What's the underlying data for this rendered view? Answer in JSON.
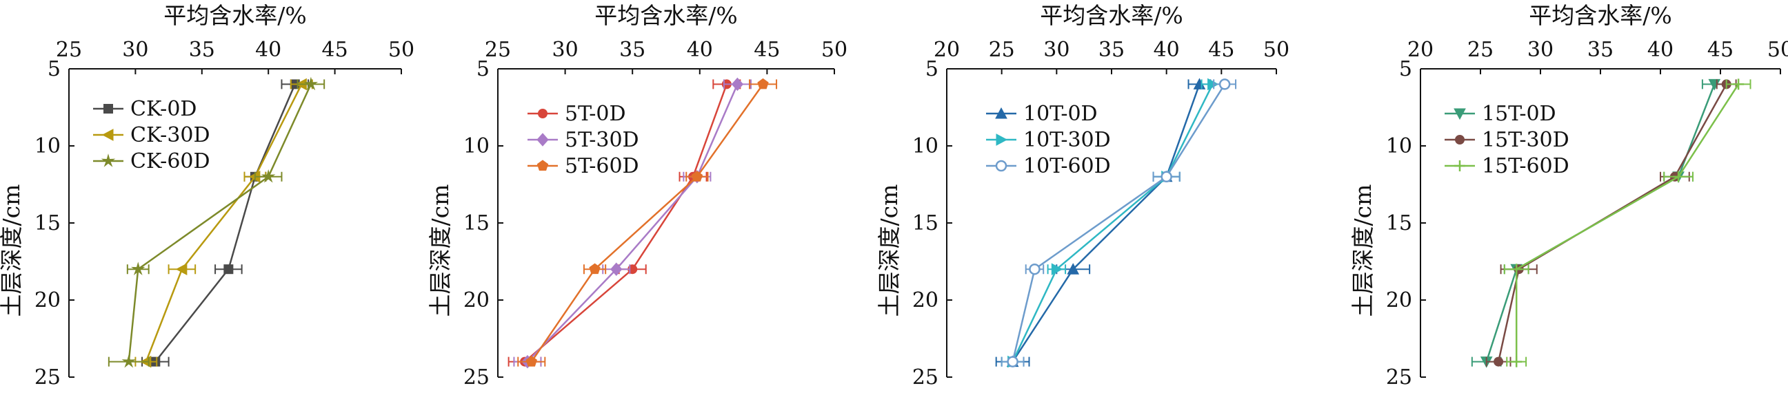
{
  "chart_data": [
    {
      "type": "line",
      "orientation": "depth-profile",
      "xlabel": "平均含水率/%",
      "ylabel": "土层深度/cm",
      "xlim": [
        25,
        50
      ],
      "ylim": [
        5,
        25
      ],
      "x_ticks": [
        "25",
        "30",
        "35",
        "40",
        "45",
        "50"
      ],
      "y_ticks": [
        "5",
        "10",
        "15",
        "20",
        "25"
      ],
      "x_axis_position": "top",
      "y_inverted": true,
      "grid": false,
      "legend_position": "upper-left",
      "depths": [
        6,
        12,
        18,
        24
      ],
      "series": [
        {
          "name": "CK-0D",
          "color": "#4a4a4a",
          "marker": "square",
          "moisture": [
            42.0,
            39.0,
            37.0,
            31.5
          ],
          "error": [
            1.0,
            0.8,
            1.0,
            1.0
          ]
        },
        {
          "name": "CK-30D",
          "color": "#b89a10",
          "marker": "triangle-left",
          "moisture": [
            42.5,
            39.0,
            33.5,
            30.8
          ],
          "error": [
            0.8,
            0.8,
            1.0,
            0.8
          ]
        },
        {
          "name": "CK-60D",
          "color": "#7d8a2a",
          "marker": "star",
          "moisture": [
            43.2,
            40.0,
            30.2,
            29.5
          ],
          "error": [
            1.0,
            1.0,
            0.8,
            1.5
          ]
        }
      ]
    },
    {
      "type": "line",
      "orientation": "depth-profile",
      "xlabel": "平均含水率/%",
      "ylabel": "土层深度/cm",
      "xlim": [
        25,
        50
      ],
      "ylim": [
        5,
        25
      ],
      "x_ticks": [
        "25",
        "30",
        "35",
        "40",
        "45",
        "50"
      ],
      "y_ticks": [
        "5",
        "10",
        "15",
        "20",
        "25"
      ],
      "x_axis_position": "top",
      "y_inverted": true,
      "grid": false,
      "legend_position": "upper-left",
      "depths": [
        6,
        12,
        18,
        24
      ],
      "series": [
        {
          "name": "5T-0D",
          "color": "#d8453a",
          "marker": "circle",
          "moisture": [
            42.0,
            39.5,
            35.0,
            27.0
          ],
          "error": [
            1.0,
            1.0,
            1.0,
            1.2
          ]
        },
        {
          "name": "5T-30D",
          "color": "#a97bc7",
          "marker": "diamond",
          "moisture": [
            42.8,
            39.8,
            33.8,
            27.2
          ],
          "error": [
            1.0,
            1.0,
            1.0,
            1.0
          ]
        },
        {
          "name": "5T-60D",
          "color": "#e2712a",
          "marker": "pentagon",
          "moisture": [
            44.7,
            39.8,
            32.2,
            27.5
          ],
          "error": [
            1.0,
            0.8,
            0.8,
            1.0
          ]
        }
      ]
    },
    {
      "type": "line",
      "orientation": "depth-profile",
      "xlabel": "平均含水率/%",
      "ylabel": "土层深度/cm",
      "xlim": [
        20,
        50
      ],
      "ylim": [
        5,
        25
      ],
      "x_ticks": [
        "20",
        "25",
        "30",
        "35",
        "40",
        "45",
        "50"
      ],
      "y_ticks": [
        "5",
        "10",
        "15",
        "20",
        "25"
      ],
      "x_axis_position": "top",
      "y_inverted": true,
      "grid": false,
      "legend_position": "upper-left",
      "depths": [
        6,
        12,
        18,
        24
      ],
      "series": [
        {
          "name": "10T-0D",
          "color": "#2469a8",
          "marker": "triangle-up",
          "moisture": [
            43.0,
            40.0,
            31.5,
            26.0
          ],
          "error": [
            1.0,
            1.2,
            1.5,
            1.5
          ]
        },
        {
          "name": "10T-30D",
          "color": "#2fb8c4",
          "marker": "triangle-right",
          "moisture": [
            44.2,
            40.0,
            30.0,
            26.0
          ],
          "error": [
            1.0,
            1.2,
            0.8,
            1.0
          ]
        },
        {
          "name": "10T-60D",
          "color": "#6d9ccc",
          "marker": "hexagon",
          "moisture": [
            45.3,
            40.0,
            28.0,
            26.0
          ],
          "error": [
            1.0,
            1.2,
            0.8,
            1.0
          ]
        }
      ]
    },
    {
      "type": "line",
      "orientation": "depth-profile",
      "xlabel": "平均含水率/%",
      "ylabel": "土层深度/cm",
      "xlim": [
        20,
        50
      ],
      "ylim": [
        5,
        25
      ],
      "x_ticks": [
        "20",
        "25",
        "30",
        "35",
        "40",
        "45",
        "50"
      ],
      "y_ticks": [
        "5",
        "10",
        "15",
        "20",
        "25"
      ],
      "x_axis_position": "top",
      "y_inverted": true,
      "grid": false,
      "legend_position": "upper-left",
      "depths": [
        6,
        12,
        18,
        24
      ],
      "series": [
        {
          "name": "15T-0D",
          "color": "#3a9c78",
          "marker": "triangle-down",
          "moisture": [
            44.5,
            41.5,
            28.0,
            25.5
          ],
          "error": [
            1.0,
            1.2,
            1.0,
            1.2
          ]
        },
        {
          "name": "15T-30D",
          "color": "#7a4a44",
          "marker": "circle",
          "moisture": [
            45.5,
            41.2,
            28.2,
            26.5
          ],
          "error": [
            0.8,
            1.2,
            1.5,
            1.0
          ]
        },
        {
          "name": "15T-60D",
          "color": "#7cc04a",
          "marker": "plus",
          "moisture": [
            46.5,
            41.5,
            28.0,
            28.0
          ],
          "error": [
            1.0,
            1.2,
            1.0,
            0.8
          ]
        }
      ]
    }
  ]
}
